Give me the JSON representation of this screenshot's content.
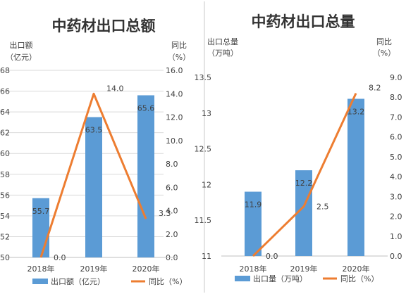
{
  "colors": {
    "bar": "#5b9bd5",
    "line": "#ed7d31",
    "text": "#404040",
    "title": "#333333",
    "grid": "#d9d9d9",
    "separator": "#c8c8c8"
  },
  "chart_data": [
    {
      "type": "bar+line",
      "title": "中药材出口总额",
      "categories": [
        "2018年",
        "2019年",
        "2020年"
      ],
      "series": [
        {
          "name": "出口额（亿元）",
          "kind": "bar",
          "axis": "left",
          "values": [
            55.7,
            63.5,
            65.6
          ]
        },
        {
          "name": "同比（%）",
          "kind": "line",
          "axis": "right",
          "values": [
            0.0,
            14.0,
            3.3
          ]
        }
      ],
      "left_axis": {
        "label_line1": "出口额",
        "label_line2": "（亿元）",
        "min": 50,
        "max": 68,
        "step": 2,
        "ticks": [
          "50",
          "52",
          "54",
          "56",
          "58",
          "60",
          "62",
          "64",
          "66",
          "68"
        ]
      },
      "right_axis": {
        "label_line1": "同比",
        "label_line2": "（%）",
        "min": 0,
        "max": 16,
        "step": 2,
        "ticks": [
          "0.0",
          "2.0",
          "4.0",
          "6.0",
          "8.0",
          "10.0",
          "12.0",
          "14.0",
          "16.0"
        ]
      },
      "bar_labels": [
        "55.7",
        "63.5",
        "65.6"
      ],
      "line_labels": [
        "0.0",
        "14.0",
        "3.3"
      ],
      "legend": {
        "bar": "出口额（亿元）",
        "line": "同比（%）"
      },
      "grid": true,
      "legend_position": "bottom"
    },
    {
      "type": "bar+line",
      "title": "中药材出口总量",
      "categories": [
        "2018年",
        "2019年",
        "2020年"
      ],
      "series": [
        {
          "name": "出口量（万吨）",
          "kind": "bar",
          "axis": "left",
          "values": [
            11.9,
            12.2,
            13.2
          ]
        },
        {
          "name": "同比（%）",
          "kind": "line",
          "axis": "right",
          "values": [
            0.0,
            2.5,
            8.2
          ]
        }
      ],
      "left_axis": {
        "label_line1": "出口总量",
        "label_line2": "（万吨）",
        "min": 11,
        "max": 13.5,
        "step": 0.5,
        "ticks": [
          "11",
          "11.5",
          "12",
          "12.5",
          "13",
          "13.5"
        ]
      },
      "right_axis": {
        "label_line1": "同比",
        "label_line2": "（%）",
        "min": 0,
        "max": 9,
        "step": 1,
        "ticks": [
          "0.0",
          "1.0",
          "2.0",
          "3.0",
          "4.0",
          "5.0",
          "6.0",
          "7.0",
          "8.0",
          "9.0"
        ]
      },
      "bar_labels": [
        "11.9",
        "12.2",
        "13.2"
      ],
      "line_labels": [
        "0.0",
        "2.5",
        "8.2"
      ],
      "legend": {
        "bar": "出口量（万吨）",
        "line": "同比（%）"
      },
      "grid": false,
      "legend_position": "bottom"
    }
  ]
}
